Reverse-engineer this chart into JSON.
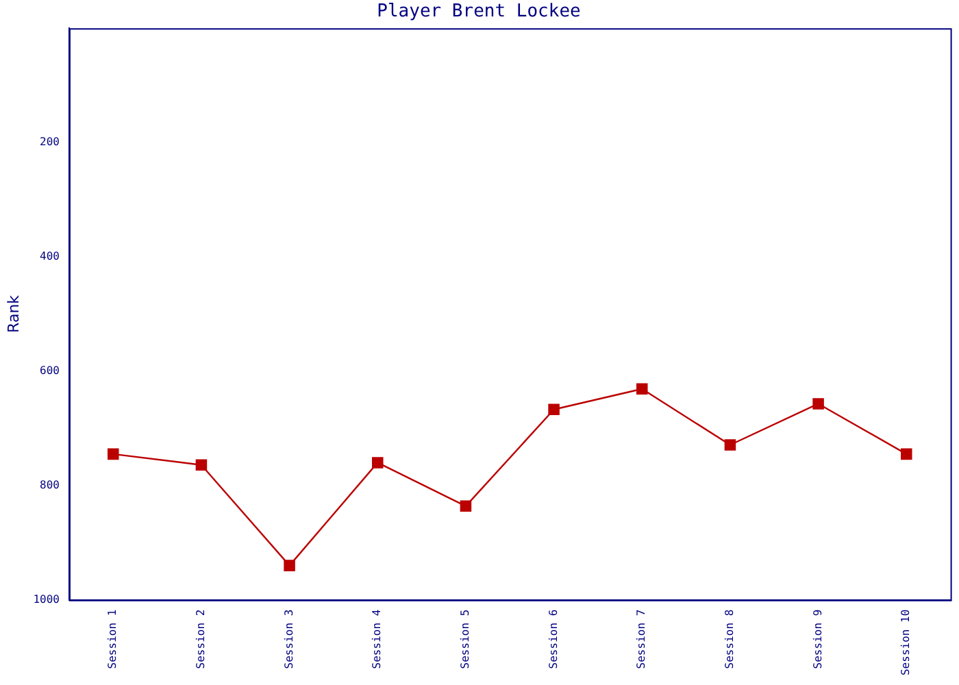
{
  "chart_data": {
    "type": "line",
    "title": "Player Brent Lockee",
    "ylabel": "Rank",
    "categories": [
      "Session 1",
      "Session 2",
      "Session 3",
      "Session 4",
      "Session 5",
      "Session 6",
      "Session 7",
      "Session 8",
      "Session 9",
      "Session 10"
    ],
    "series": [
      {
        "color": "#bb0000",
        "values": [
          745,
          764,
          940,
          760,
          836,
          667,
          631,
          729,
          657,
          745
        ]
      }
    ],
    "ylim": [
      1000,
      0
    ],
    "yticks": [
      200,
      400,
      600,
      800,
      1000
    ],
    "grid": false,
    "legend": false,
    "marker": "square",
    "line_style": "solid"
  }
}
